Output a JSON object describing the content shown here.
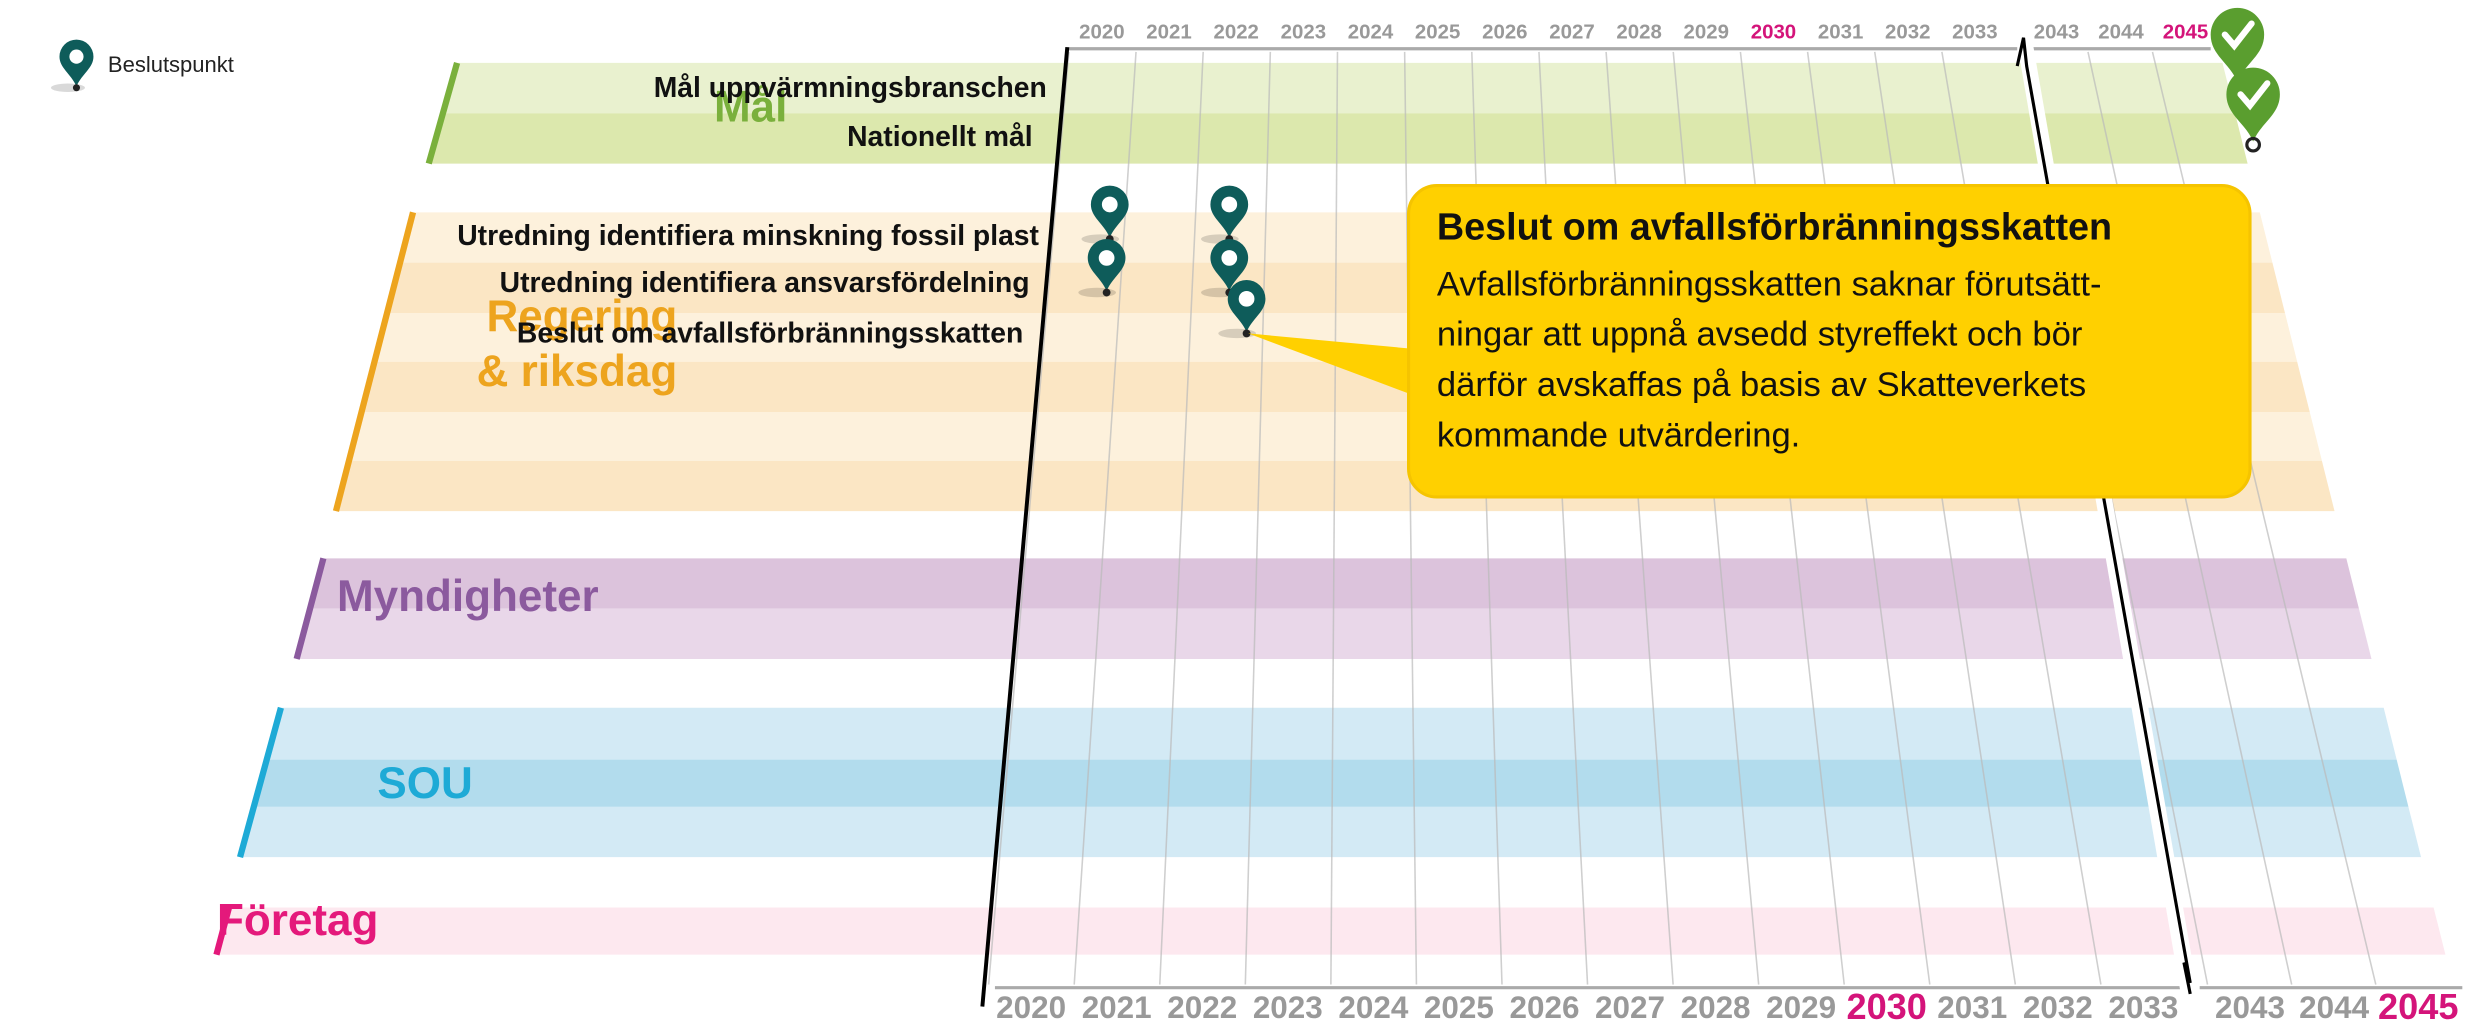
{
  "legend": {
    "label": "Beslutspunkt"
  },
  "categories": [
    {
      "lines": [
        "Mål"
      ],
      "color": "#7ab03c"
    },
    {
      "lines": [
        "Regering",
        "& riksdag"
      ],
      "color": "#eda41e"
    },
    {
      "lines": [
        "Myndigheter"
      ],
      "color": "#8b5a9e"
    },
    {
      "lines": [
        "SOU"
      ],
      "color": "#1eaad6"
    },
    {
      "lines": [
        "Företag"
      ],
      "color": "#e4197b"
    }
  ],
  "rows": {
    "goals": [
      "Mål uppvärmningsbranschen",
      "Nationellt mål"
    ],
    "government": [
      "Utredning identifiera minskning fossil plast",
      "Utredning identifiera ansvarsfördelning",
      "Beslut om avfallsförbränningsskatten"
    ]
  },
  "top_years": [
    {
      "label": "2020"
    },
    {
      "label": "2021"
    },
    {
      "label": "2022"
    },
    {
      "label": "2023"
    },
    {
      "label": "2024"
    },
    {
      "label": "2025"
    },
    {
      "label": "2026"
    },
    {
      "label": "2027"
    },
    {
      "label": "2028"
    },
    {
      "label": "2029"
    },
    {
      "label": "2030",
      "highlight": true
    },
    {
      "label": "2031"
    },
    {
      "label": "2032"
    },
    {
      "label": "2033"
    },
    {
      "label": "2043"
    },
    {
      "label": "2044"
    },
    {
      "label": "2045",
      "highlight": true
    }
  ],
  "bottom_years": [
    {
      "label": "2020"
    },
    {
      "label": "2021"
    },
    {
      "label": "2022"
    },
    {
      "label": "2023"
    },
    {
      "label": "2024"
    },
    {
      "label": "2025"
    },
    {
      "label": "2026"
    },
    {
      "label": "2027"
    },
    {
      "label": "2028"
    },
    {
      "label": "2029"
    },
    {
      "label": "2030",
      "highlight": true
    },
    {
      "label": "2031"
    },
    {
      "label": "2032"
    },
    {
      "label": "2033"
    },
    {
      "label": "2043"
    },
    {
      "label": "2044"
    },
    {
      "label": "2045",
      "highlight": true
    }
  ],
  "callout": {
    "title": "Beslut om avfallsförbränningsskatten",
    "lines": [
      "Avfallsförbränningsskatten saknar förutsätt-",
      "ningar att uppnå avsedd styreffekt och bör",
      "därför avskaffas på basis av Skatteverkets",
      "kommande utvärdering."
    ]
  }
}
